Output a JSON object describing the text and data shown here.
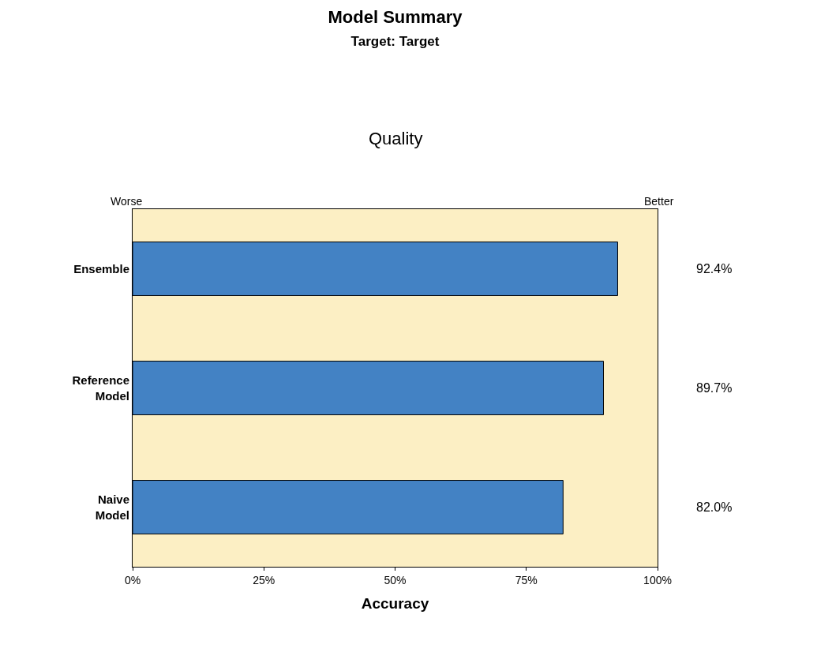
{
  "chart_data": {
    "type": "bar",
    "orientation": "horizontal",
    "title": "Model Summary",
    "subtitle": "Target: Target",
    "xlabel": "Accuracy",
    "annotations": [
      "Quality",
      "Worse",
      "Better"
    ],
    "categories": [
      "Ensemble",
      "Reference Model",
      "Naive Model"
    ],
    "values": [
      92.4,
      89.7,
      82.0
    ],
    "color": "#4382c4",
    "value_labels": [
      "92.4%",
      "89.7%",
      "82.0%"
    ],
    "xlim": [
      0,
      100
    ],
    "xticks": [
      {
        "value": 0,
        "label": "0%"
      },
      {
        "value": 25,
        "label": "25%"
      },
      {
        "value": 50,
        "label": "50%"
      },
      {
        "value": 75,
        "label": "75%"
      },
      {
        "value": 100,
        "label": "100%"
      }
    ],
    "grid": false,
    "legend": false
  }
}
